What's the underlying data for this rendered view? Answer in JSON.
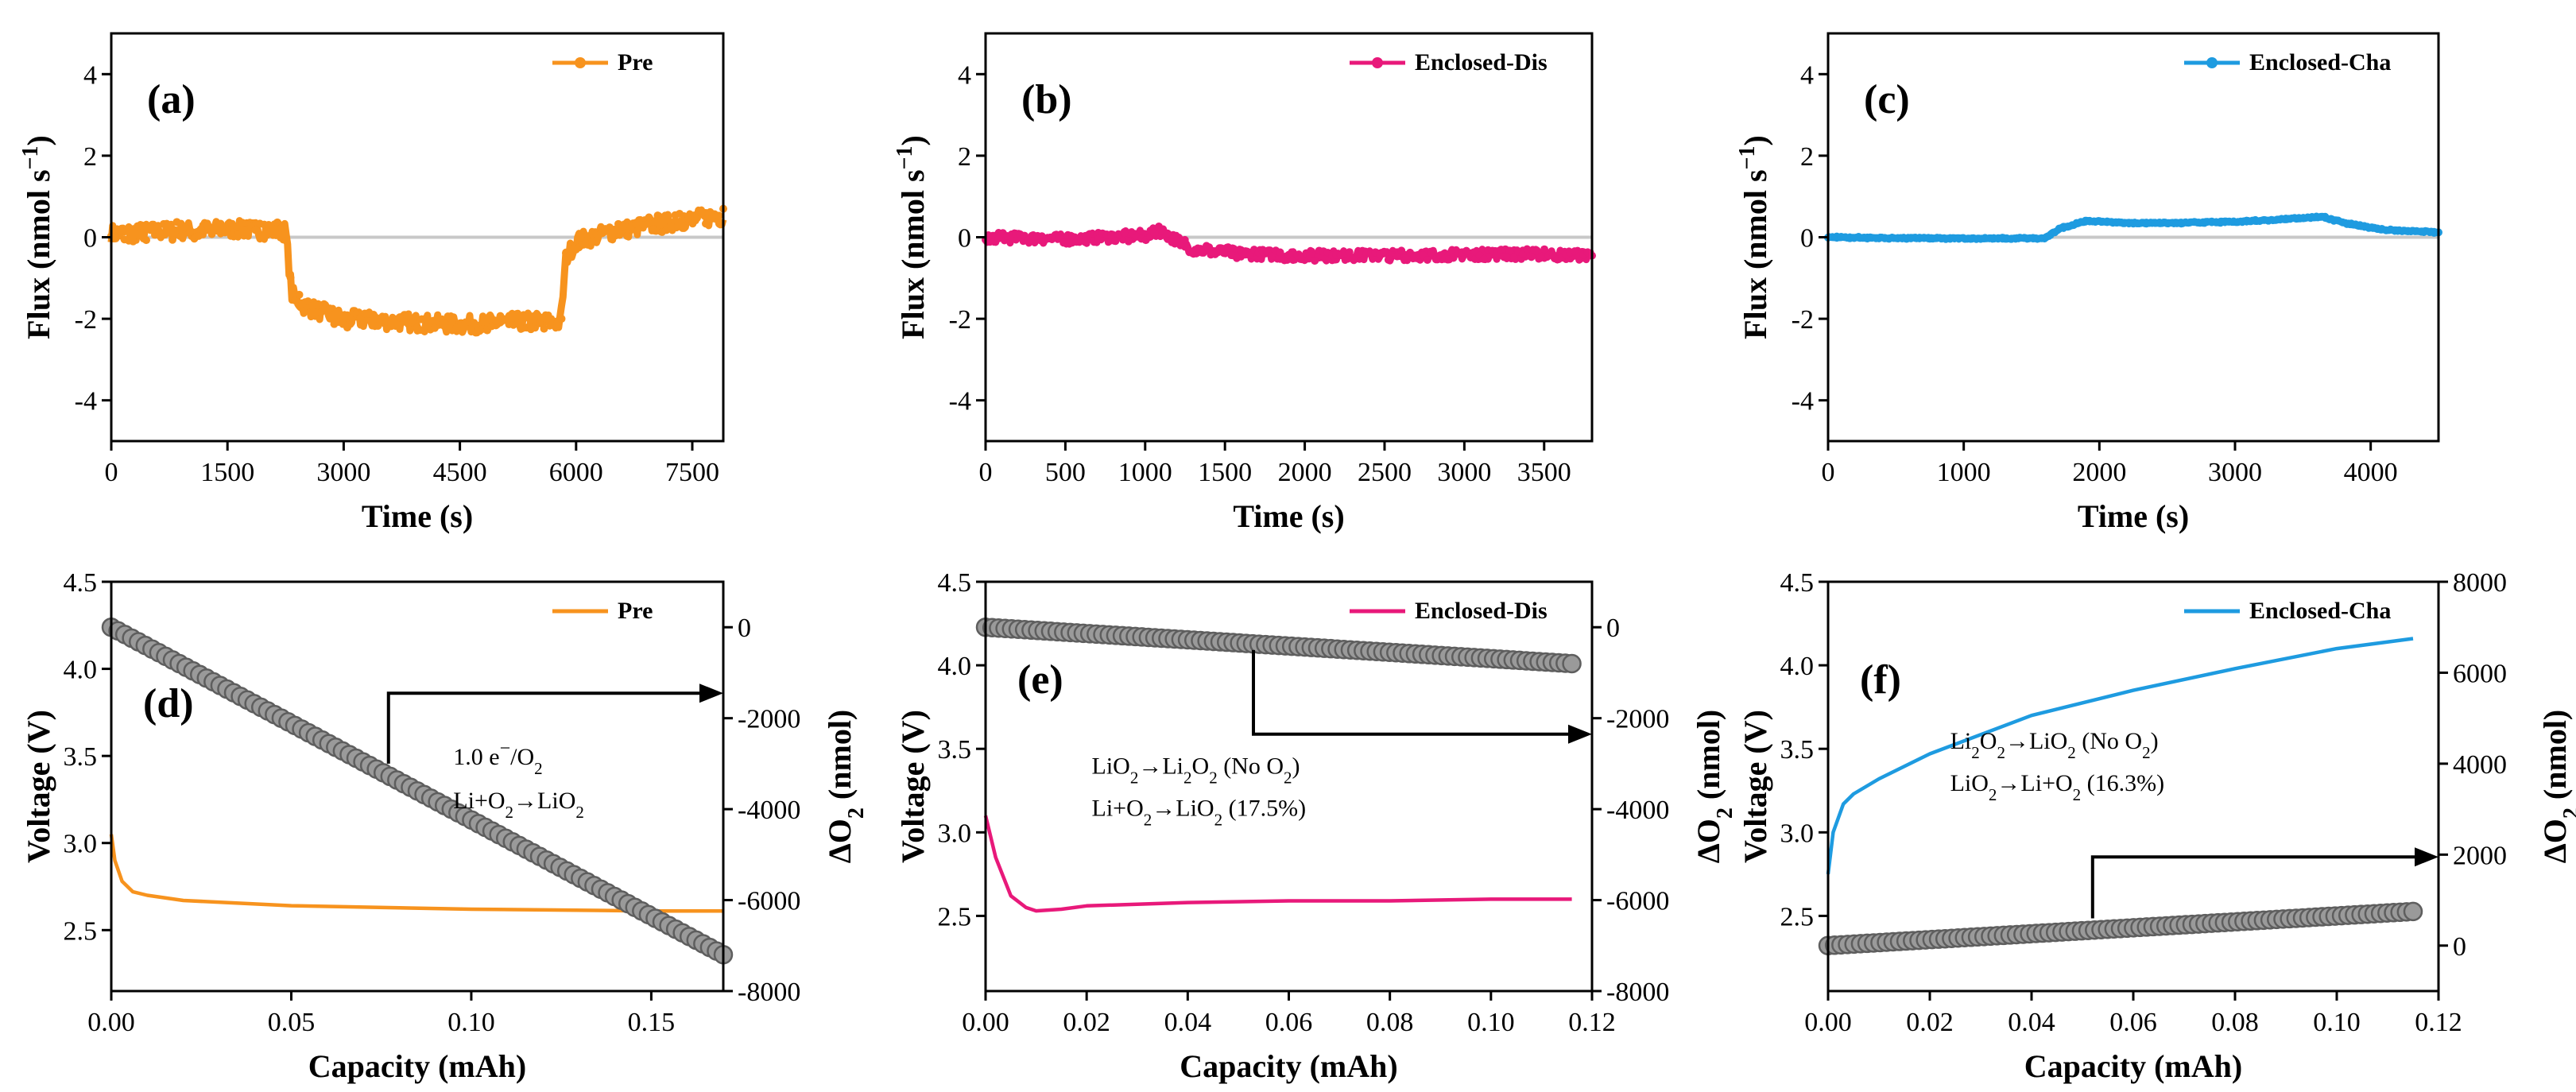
{
  "chart_data": [
    {
      "id": "a",
      "panel_label": "(a)",
      "type": "line",
      "xlabel": "Time (s)",
      "ylabel": "Flux (nmol s",
      "ylabel_sup": "−1",
      "ylabel_end": ")",
      "xlim": [
        0,
        7900
      ],
      "ylim": [
        -5,
        5
      ],
      "xticks": [
        0,
        1500,
        3000,
        4500,
        6000,
        7500
      ],
      "yticks": [
        -4,
        -2,
        0,
        2,
        4
      ],
      "zero_line": true,
      "legend_position": "top-right",
      "series": [
        {
          "name": "Pre",
          "color": "#f7931e",
          "marker": "dot",
          "noise": 0.22,
          "x": [
            0,
            1500,
            2250,
            2330,
            2500,
            3000,
            3500,
            4000,
            4500,
            5000,
            5500,
            5800,
            5870,
            6000,
            6500,
            7000,
            7500,
            7900
          ],
          "y": [
            0.1,
            0.2,
            0.15,
            -1.4,
            -1.7,
            -2.0,
            -2.05,
            -2.1,
            -2.15,
            -2.1,
            -2.05,
            -2.1,
            -0.5,
            -0.1,
            0.15,
            0.3,
            0.45,
            0.5
          ]
        }
      ]
    },
    {
      "id": "b",
      "panel_label": "(b)",
      "type": "line",
      "xlabel": "Time (s)",
      "ylabel": "Flux (nmol s",
      "ylabel_sup": "−1",
      "ylabel_end": ")",
      "xlim": [
        0,
        3800
      ],
      "ylim": [
        -5,
        5
      ],
      "xticks": [
        0,
        500,
        1000,
        1500,
        2000,
        2500,
        3000,
        3500
      ],
      "yticks": [
        -4,
        -2,
        0,
        2,
        4
      ],
      "zero_line": true,
      "legend_position": "top-right",
      "series": [
        {
          "name": "Enclosed-Dis",
          "color": "#e8197a",
          "marker": "dot",
          "noise": 0.13,
          "x": [
            0,
            500,
            1000,
            1100,
            1300,
            1600,
            2000,
            2500,
            3000,
            3500,
            3800
          ],
          "y": [
            0.0,
            -0.05,
            0.05,
            0.15,
            -0.3,
            -0.4,
            -0.45,
            -0.45,
            -0.42,
            -0.42,
            -0.45
          ]
        }
      ]
    },
    {
      "id": "c",
      "panel_label": "(c)",
      "type": "line",
      "xlabel": "Time (s)",
      "ylabel": "Flux (nmol s",
      "ylabel_sup": "−1",
      "ylabel_end": ")",
      "xlim": [
        0,
        4500
      ],
      "ylim": [
        -5,
        5
      ],
      "xticks": [
        0,
        1000,
        2000,
        3000,
        4000
      ],
      "yticks": [
        -4,
        -2,
        0,
        2,
        4
      ],
      "zero_line": true,
      "legend_position": "top-right",
      "series": [
        {
          "name": "Enclosed-Cha",
          "color": "#1e9be0",
          "marker": "dot",
          "noise": 0.02,
          "x": [
            0,
            500,
            1000,
            1600,
            1700,
            1900,
            2200,
            2600,
            3000,
            3400,
            3650,
            3800,
            4100,
            4500
          ],
          "y": [
            0.0,
            -0.02,
            -0.03,
            -0.03,
            0.2,
            0.4,
            0.35,
            0.35,
            0.38,
            0.45,
            0.5,
            0.35,
            0.18,
            0.12
          ]
        }
      ]
    },
    {
      "id": "d",
      "panel_label": "(d)",
      "type": "line",
      "xlabel": "Capacity (mAh)",
      "ylabel": "Voltage (V)",
      "y2label": "ΔO",
      "xlim": [
        0,
        0.17
      ],
      "ylim": [
        2.15,
        4.5
      ],
      "y2lim": [
        -8000,
        1000
      ],
      "xticks": [
        0,
        0.05,
        0.1,
        0.15
      ],
      "xtick_labels": [
        "0.00",
        "0.05",
        "0.10",
        "0.15"
      ],
      "yticks": [
        2.5,
        3.0,
        3.5,
        4.0,
        4.5
      ],
      "ytick_labels": [
        "2.5",
        "3.0",
        "3.5",
        "4.0",
        "4.5"
      ],
      "y2ticks": [
        -8000,
        -6000,
        -4000,
        -2000,
        0
      ],
      "y2tick_labels": [
        "-8000",
        "-6000",
        "-4000",
        "-2000",
        "0"
      ],
      "legend_position": "top-right",
      "series": [
        {
          "name": "Pre",
          "axis": "left",
          "color": "#f7931e",
          "x": [
            0,
            0.001,
            0.003,
            0.006,
            0.01,
            0.02,
            0.05,
            0.1,
            0.15,
            0.17
          ],
          "y": [
            3.05,
            2.9,
            2.78,
            2.72,
            2.7,
            2.67,
            2.64,
            2.62,
            2.61,
            2.61
          ]
        },
        {
          "axis": "right",
          "color": "#8a8a8a",
          "marker": "circle",
          "x": [
            0,
            0.17
          ],
          "y": [
            0,
            -7200
          ]
        }
      ],
      "arrow": {
        "from": [
          0.077,
          -3000
        ],
        "corner": [
          0.077,
          -1450
        ],
        "to": [
          0.17,
          -1450
        ],
        "direction": "right"
      },
      "annotations": [
        {
          "parts": [
            [
              "1.0 e",
              ""
            ],
            [
              "−",
              "sup"
            ],
            [
              "/O",
              ""
            ],
            [
              "2",
              "sub"
            ]
          ],
          "x": 0.095,
          "y": 3.45
        },
        {
          "parts": [
            [
              "Li+O",
              ""
            ],
            [
              "2",
              "sub"
            ],
            [
              "→LiO",
              ""
            ],
            [
              "2",
              "sub"
            ]
          ],
          "x": 0.095,
          "y": 3.2
        }
      ]
    },
    {
      "id": "e",
      "panel_label": "(e)",
      "type": "line",
      "xlabel": "Capacity (mAh)",
      "ylabel": "Voltage (V)",
      "y2label": "ΔO",
      "xlim": [
        0,
        0.12
      ],
      "ylim": [
        2.05,
        4.5
      ],
      "y2lim": [
        -8000,
        1000
      ],
      "xticks": [
        0,
        0.02,
        0.04,
        0.06,
        0.08,
        0.1,
        0.12
      ],
      "xtick_labels": [
        "0.00",
        "0.02",
        "0.04",
        "0.06",
        "0.08",
        "0.10",
        "0.12"
      ],
      "yticks": [
        2.5,
        3.0,
        3.5,
        4.0,
        4.5
      ],
      "ytick_labels": [
        "2.5",
        "3.0",
        "3.5",
        "4.0",
        "4.5"
      ],
      "y2ticks": [
        -8000,
        -6000,
        -4000,
        -2000,
        0
      ],
      "y2tick_labels": [
        "-8000",
        "-6000",
        "-4000",
        "-2000",
        "0"
      ],
      "legend_position": "top-right",
      "series": [
        {
          "name": "Enclosed-Dis",
          "axis": "left",
          "color": "#e8197a",
          "x": [
            0,
            0.002,
            0.005,
            0.008,
            0.01,
            0.015,
            0.02,
            0.04,
            0.06,
            0.08,
            0.1,
            0.116
          ],
          "y": [
            3.1,
            2.85,
            2.62,
            2.55,
            2.53,
            2.54,
            2.56,
            2.58,
            2.59,
            2.59,
            2.6,
            2.6
          ]
        },
        {
          "axis": "right",
          "color": "#8a8a8a",
          "marker": "circle",
          "x": [
            0,
            0.116
          ],
          "y": [
            0,
            -800
          ]
        }
      ],
      "arrow": {
        "from": [
          0.053,
          -500
        ],
        "corner": [
          0.053,
          -2350
        ],
        "to": [
          0.12,
          -2350
        ],
        "direction": "right"
      },
      "annotations": [
        {
          "parts": [
            [
              "LiO",
              ""
            ],
            [
              "2",
              "sub"
            ],
            [
              "→Li",
              ""
            ],
            [
              "2",
              "sub"
            ],
            [
              "O",
              ""
            ],
            [
              "2",
              "sub"
            ],
            [
              " (No O",
              ""
            ],
            [
              "2",
              "sub"
            ],
            [
              ")",
              ""
            ]
          ],
          "x": 0.021,
          "y": 3.35
        },
        {
          "parts": [
            [
              "Li+O",
              ""
            ],
            [
              "2",
              "sub"
            ],
            [
              "→LiO",
              ""
            ],
            [
              "2",
              "sub"
            ],
            [
              " (17.5%)",
              ""
            ]
          ],
          "x": 0.021,
          "y": 3.1
        }
      ]
    },
    {
      "id": "f",
      "panel_label": "(f)",
      "type": "line",
      "xlabel": "Capacity (mAh)",
      "ylabel": "Voltage (V)",
      "y2label": "ΔO",
      "xlim": [
        0,
        0.12
      ],
      "ylim": [
        2.05,
        4.5
      ],
      "y2lim": [
        -1000,
        8000
      ],
      "xticks": [
        0,
        0.02,
        0.04,
        0.06,
        0.08,
        0.1,
        0.12
      ],
      "xtick_labels": [
        "0.00",
        "0.02",
        "0.04",
        "0.06",
        "0.08",
        "0.10",
        "0.12"
      ],
      "yticks": [
        2.5,
        3.0,
        3.5,
        4.0,
        4.5
      ],
      "ytick_labels": [
        "2.5",
        "3.0",
        "3.5",
        "4.0",
        "4.5"
      ],
      "y2ticks": [
        0,
        2000,
        4000,
        6000,
        8000
      ],
      "y2tick_labels": [
        "0",
        "2000",
        "4000",
        "6000",
        "8000"
      ],
      "legend_position": "top-right",
      "series": [
        {
          "name": "Enclosed-Cha",
          "axis": "left",
          "color": "#1e9be0",
          "x": [
            0,
            0.001,
            0.003,
            0.005,
            0.01,
            0.02,
            0.04,
            0.06,
            0.08,
            0.1,
            0.115
          ],
          "y": [
            2.75,
            3.0,
            3.17,
            3.23,
            3.32,
            3.47,
            3.7,
            3.85,
            3.98,
            4.1,
            4.16
          ]
        },
        {
          "axis": "right",
          "color": "#8a8a8a",
          "marker": "circle",
          "x": [
            0,
            0.115
          ],
          "y": [
            0,
            750
          ]
        }
      ],
      "arrow": {
        "from": [
          0.052,
          600
        ],
        "corner": [
          0.052,
          1950
        ],
        "to": [
          0.12,
          1950
        ],
        "direction": "right"
      },
      "annotations": [
        {
          "parts": [
            [
              "Li",
              ""
            ],
            [
              "2",
              "sub"
            ],
            [
              "O",
              ""
            ],
            [
              "2",
              "sub"
            ],
            [
              "→LiO",
              ""
            ],
            [
              "2",
              "sub"
            ],
            [
              " (No O",
              ""
            ],
            [
              "2",
              "sub"
            ],
            [
              ")",
              ""
            ]
          ],
          "x": 0.024,
          "y": 3.5
        },
        {
          "parts": [
            [
              "LiO",
              ""
            ],
            [
              "2",
              "sub"
            ],
            [
              "→Li+O",
              ""
            ],
            [
              "2",
              "sub"
            ],
            [
              " (16.3%)",
              ""
            ]
          ],
          "x": 0.024,
          "y": 3.25
        }
      ]
    }
  ]
}
